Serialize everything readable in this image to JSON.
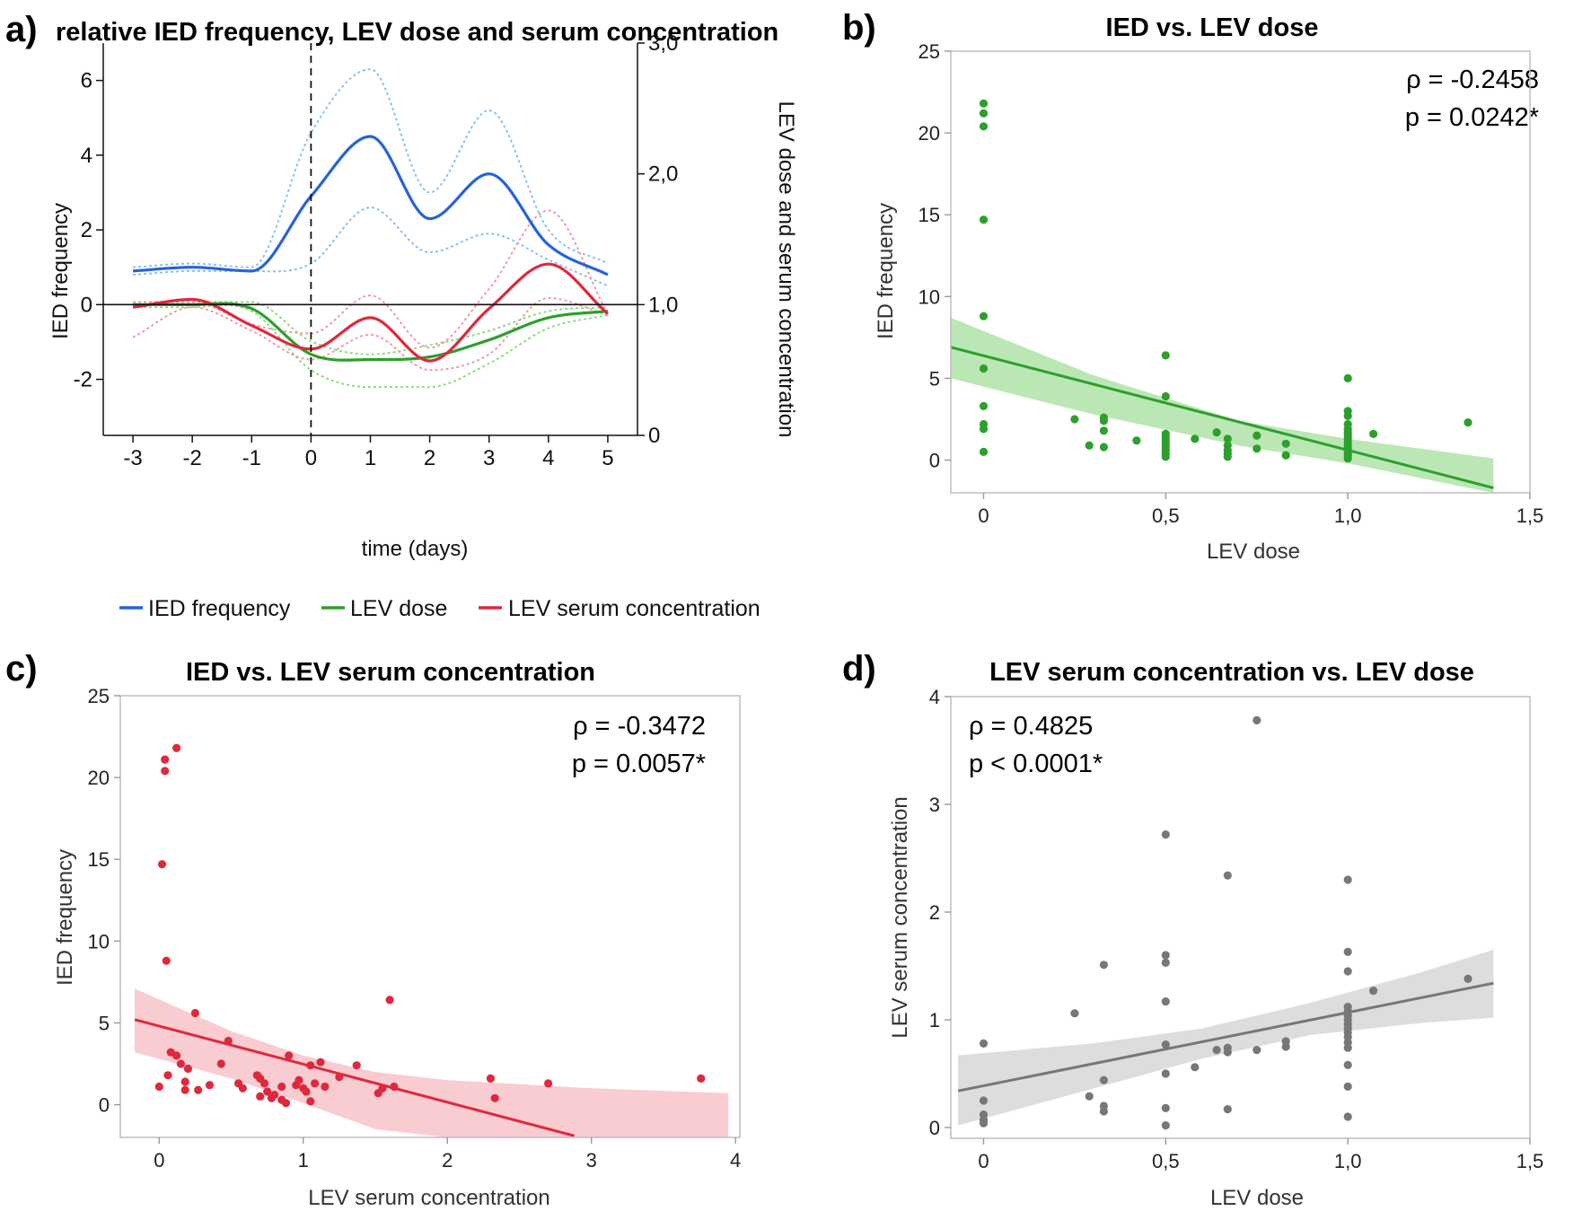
{
  "colors": {
    "blue": "#2563d9",
    "green": "#2ca02c",
    "red": "#e0283c",
    "gray": "#777777",
    "lightblue": "#8cc0ef",
    "lightgreen": "#8edb7e",
    "lightred": "#f29aa4",
    "greenband": "#b4e4ad",
    "redband": "#f8c6cd",
    "grayband": "#d9d9d9"
  },
  "chart_data": [
    {
      "panel": "a)",
      "type": "line",
      "title": "relative IED frequency, LEV dose and serum concentration",
      "xlabel": "time (days)",
      "ylabel": "IED frequency",
      "y2label": "LEV dose and serum concentration",
      "xlim": [
        -3.5,
        5.5
      ],
      "ylim": [
        -3.5,
        7
      ],
      "y2lim": [
        0,
        3
      ],
      "xticks": [
        -3,
        -2,
        -1,
        0,
        1,
        2,
        3,
        4,
        5
      ],
      "xtick_labels": [
        "-3",
        "-2",
        "-1",
        "0",
        "1",
        "2",
        "3",
        "4",
        "5"
      ],
      "yticks": [
        -2,
        0,
        2,
        4,
        6
      ],
      "ytick_labels": [
        "-2",
        "0",
        "2",
        "4",
        "6"
      ],
      "y2ticks": [
        0,
        1,
        2,
        3
      ],
      "y2tick_labels": [
        "0",
        "1,0",
        "2,0",
        "3,0"
      ],
      "vline_x": 0,
      "hline_y": 0,
      "legend": [
        "IED frequency",
        "LEV dose",
        "LEV serum concentration"
      ],
      "series": [
        {
          "name": "IED frequency",
          "axis": "left",
          "color": "#2563d9",
          "x": [
            -3,
            -2,
            -1,
            0,
            1,
            2,
            3,
            4,
            5
          ],
          "values": [
            0.9,
            1.0,
            0.9,
            2.9,
            4.5,
            2.3,
            3.5,
            1.6,
            0.8
          ],
          "lower": [
            0.8,
            0.9,
            0.9,
            1.1,
            2.6,
            1.4,
            1.9,
            1.2,
            0.5
          ],
          "upper": [
            1.0,
            1.1,
            1.0,
            4.6,
            6.3,
            3.0,
            5.2,
            2.0,
            1.1
          ]
        },
        {
          "name": "LEV dose",
          "axis": "right",
          "color": "#2ca02c",
          "x": [
            -3,
            -2,
            -1,
            0,
            1,
            2,
            3,
            4,
            5
          ],
          "values": [
            1.0,
            1.0,
            0.97,
            0.62,
            0.58,
            0.6,
            0.73,
            0.9,
            0.95
          ],
          "lower": [
            0.98,
            0.98,
            0.95,
            0.5,
            0.37,
            0.37,
            0.55,
            0.82,
            0.92
          ],
          "upper": [
            1.02,
            1.02,
            1.02,
            0.72,
            0.62,
            0.69,
            0.8,
            0.95,
            0.98
          ]
        },
        {
          "name": "LEV serum concentration",
          "axis": "right",
          "color": "#e0283c",
          "x": [
            -3,
            -2,
            -1,
            0,
            1,
            2,
            3,
            4,
            5
          ],
          "values": [
            0.98,
            1.04,
            0.84,
            0.66,
            0.9,
            0.57,
            0.97,
            1.31,
            0.93
          ],
          "lower": [
            0.75,
            0.98,
            0.8,
            0.58,
            0.77,
            0.5,
            0.62,
            1.05,
            0.92
          ],
          "upper": [
            1.02,
            1.02,
            0.85,
            0.78,
            1.07,
            0.67,
            1.12,
            1.72,
            0.93
          ]
        }
      ]
    },
    {
      "panel": "b)",
      "type": "scatter",
      "title": "IED vs. LEV dose",
      "xlabel": "LEV dose",
      "ylabel": "IED frequency",
      "xlim": [
        -0.09,
        1.5
      ],
      "ylim": [
        -2,
        25
      ],
      "xticks": [
        0,
        0.5,
        1.0,
        1.5
      ],
      "xtick_labels": [
        "0",
        "0,5",
        "1,0",
        "1,5"
      ],
      "yticks": [
        0,
        5,
        10,
        15,
        20,
        25
      ],
      "ytick_labels": [
        "0",
        "5",
        "10",
        "15",
        "20",
        "25"
      ],
      "stats": [
        "ρ = -0.2458",
        "p = 0.0242*"
      ],
      "fit": {
        "x": [
          -0.09,
          1.4
        ],
        "y": [
          6.9,
          -1.7
        ]
      },
      "band": {
        "x": [
          -0.09,
          0.3,
          0.7,
          1.0,
          1.4
        ],
        "lower": [
          5.0,
          2.8,
          0.9,
          -0.2,
          -2.0
        ],
        "upper": [
          8.7,
          5.2,
          2.4,
          1.3,
          0.1
        ]
      },
      "color": "#2ca02c",
      "points": [
        [
          0,
          21.8
        ],
        [
          0,
          21.2
        ],
        [
          0,
          20.4
        ],
        [
          0,
          14.7
        ],
        [
          0,
          8.8
        ],
        [
          0,
          5.6
        ],
        [
          0,
          3.3
        ],
        [
          0,
          2.2
        ],
        [
          0,
          1.9
        ],
        [
          0,
          0.5
        ],
        [
          0.25,
          2.5
        ],
        [
          0.29,
          0.9
        ],
        [
          0.33,
          2.6
        ],
        [
          0.33,
          2.4
        ],
        [
          0.33,
          1.8
        ],
        [
          0.33,
          0.8
        ],
        [
          0.42,
          1.2
        ],
        [
          0.5,
          6.4
        ],
        [
          0.5,
          3.9
        ],
        [
          0.5,
          1.6
        ],
        [
          0.5,
          1.4
        ],
        [
          0.5,
          1.2
        ],
        [
          0.5,
          1.0
        ],
        [
          0.5,
          0.8
        ],
        [
          0.5,
          0.6
        ],
        [
          0.5,
          0.4
        ],
        [
          0.5,
          0.2
        ],
        [
          0.58,
          1.3
        ],
        [
          0.64,
          1.7
        ],
        [
          0.67,
          1.3
        ],
        [
          0.67,
          0.9
        ],
        [
          0.67,
          0.6
        ],
        [
          0.67,
          0.4
        ],
        [
          0.67,
          0.2
        ],
        [
          0.75,
          1.5
        ],
        [
          0.75,
          0.7
        ],
        [
          0.83,
          1.0
        ],
        [
          0.83,
          0.3
        ],
        [
          1.0,
          5.0
        ],
        [
          1.0,
          3.0
        ],
        [
          1.0,
          2.7
        ],
        [
          1.0,
          2.2
        ],
        [
          1.0,
          1.9
        ],
        [
          1.0,
          1.7
        ],
        [
          1.0,
          1.5
        ],
        [
          1.0,
          1.3
        ],
        [
          1.0,
          1.1
        ],
        [
          1.0,
          0.9
        ],
        [
          1.0,
          0.7
        ],
        [
          1.0,
          0.5
        ],
        [
          1.0,
          0.3
        ],
        [
          1.0,
          0.1
        ],
        [
          1.07,
          1.6
        ],
        [
          1.33,
          2.3
        ]
      ]
    },
    {
      "panel": "c)",
      "type": "scatter",
      "title": "IED vs. LEV serum concentration",
      "xlabel": "LEV serum concentration",
      "ylabel": "IED frequency",
      "xlim": [
        -0.27,
        4.03
      ],
      "ylim": [
        -2,
        25
      ],
      "xticks": [
        0,
        1,
        2,
        3,
        4
      ],
      "xtick_labels": [
        "0",
        "1",
        "2",
        "3",
        "4"
      ],
      "yticks": [
        0,
        5,
        10,
        15,
        20,
        25
      ],
      "ytick_labels": [
        "0",
        "5",
        "10",
        "15",
        "20",
        "25"
      ],
      "stats": [
        "ρ = -0.3472",
        "p = 0.0057*"
      ],
      "fit": {
        "x": [
          -0.17,
          2.88
        ],
        "y": [
          5.2,
          -1.9
        ]
      },
      "band": {
        "x": [
          -0.17,
          0.5,
          1.0,
          1.5,
          2.0,
          3.0,
          3.95
        ],
        "lower": [
          3.2,
          1.6,
          0.1,
          -1.5,
          -2.0,
          -2.0,
          -2.0
        ],
        "upper": [
          7.1,
          4.5,
          3.0,
          2.0,
          1.5,
          1.0,
          0.7
        ]
      },
      "color": "#e0283c",
      "points": [
        [
          0.04,
          21.1
        ],
        [
          0.04,
          20.4
        ],
        [
          0.12,
          21.8
        ],
        [
          0.02,
          14.7
        ],
        [
          0.05,
          8.8
        ],
        [
          0.25,
          5.6
        ],
        [
          0.48,
          3.9
        ],
        [
          0.08,
          3.2
        ],
        [
          0.12,
          3.0
        ],
        [
          0.0,
          1.1
        ],
        [
          0.06,
          1.8
        ],
        [
          0.15,
          2.5
        ],
        [
          0.2,
          2.2
        ],
        [
          0.18,
          1.4
        ],
        [
          0.18,
          0.9
        ],
        [
          0.27,
          0.9
        ],
        [
          0.35,
          1.2
        ],
        [
          0.43,
          2.5
        ],
        [
          0.55,
          1.3
        ],
        [
          0.58,
          1.0
        ],
        [
          0.68,
          1.8
        ],
        [
          0.7,
          1.6
        ],
        [
          0.7,
          0.5
        ],
        [
          0.73,
          1.3
        ],
        [
          0.75,
          0.8
        ],
        [
          0.78,
          0.4
        ],
        [
          0.8,
          0.6
        ],
        [
          0.85,
          1.1
        ],
        [
          0.85,
          0.3
        ],
        [
          0.88,
          0.1
        ],
        [
          0.9,
          3.0
        ],
        [
          0.95,
          1.2
        ],
        [
          0.97,
          1.5
        ],
        [
          1.0,
          1.0
        ],
        [
          1.02,
          0.8
        ],
        [
          1.05,
          2.4
        ],
        [
          1.05,
          0.2
        ],
        [
          1.08,
          1.3
        ],
        [
          1.12,
          2.6
        ],
        [
          1.15,
          1.1
        ],
        [
          1.25,
          1.7
        ],
        [
          1.37,
          2.4
        ],
        [
          1.52,
          0.7
        ],
        [
          1.55,
          1.0
        ],
        [
          1.6,
          6.4
        ],
        [
          1.63,
          1.1
        ],
        [
          2.3,
          1.6
        ],
        [
          2.33,
          0.4
        ],
        [
          2.7,
          1.3
        ],
        [
          3.76,
          1.6
        ]
      ]
    },
    {
      "panel": "d)",
      "type": "scatter",
      "title": "LEV serum concentration vs. LEV dose",
      "xlabel": "LEV dose",
      "ylabel": "LEV serum concentration",
      "xlim": [
        -0.09,
        1.5
      ],
      "ylim": [
        -0.1,
        4
      ],
      "xticks": [
        0,
        0.5,
        1.0,
        1.5
      ],
      "xtick_labels": [
        "0",
        "0,5",
        "1,0",
        "1,5"
      ],
      "yticks": [
        0,
        1,
        2,
        3,
        4
      ],
      "ytick_labels": [
        "0",
        "1",
        "2",
        "3",
        "4"
      ],
      "stats": [
        "ρ = 0.4825",
        "p < 0.0001*"
      ],
      "fit": {
        "x": [
          -0.07,
          1.4
        ],
        "y": [
          0.34,
          1.34
        ]
      },
      "band": {
        "x": [
          -0.07,
          0.3,
          0.6,
          0.9,
          1.2,
          1.4
        ],
        "lower": [
          0.02,
          0.36,
          0.64,
          0.86,
          0.97,
          1.02
        ],
        "upper": [
          0.67,
          0.78,
          0.92,
          1.16,
          1.44,
          1.65
        ]
      },
      "color": "#777777",
      "points": [
        [
          0,
          0.78
        ],
        [
          0,
          0.25
        ],
        [
          0,
          0.12
        ],
        [
          0,
          0.07
        ],
        [
          0,
          0.04
        ],
        [
          0.25,
          1.06
        ],
        [
          0.29,
          0.29
        ],
        [
          0.33,
          1.51
        ],
        [
          0.33,
          0.44
        ],
        [
          0.33,
          0.2
        ],
        [
          0.33,
          0.15
        ],
        [
          0.5,
          2.72
        ],
        [
          0.5,
          1.6
        ],
        [
          0.5,
          1.53
        ],
        [
          0.5,
          1.17
        ],
        [
          0.5,
          0.77
        ],
        [
          0.5,
          0.5
        ],
        [
          0.5,
          0.18
        ],
        [
          0.5,
          0.02
        ],
        [
          0.58,
          0.56
        ],
        [
          0.64,
          0.72
        ],
        [
          0.67,
          2.34
        ],
        [
          0.67,
          0.74
        ],
        [
          0.67,
          0.7
        ],
        [
          0.67,
          0.17
        ],
        [
          0.75,
          3.78
        ],
        [
          0.75,
          0.72
        ],
        [
          0.83,
          0.8
        ],
        [
          0.83,
          0.75
        ],
        [
          1.0,
          2.3
        ],
        [
          1.0,
          1.63
        ],
        [
          1.0,
          1.45
        ],
        [
          1.0,
          1.12
        ],
        [
          1.0,
          1.08
        ],
        [
          1.0,
          1.04
        ],
        [
          1.0,
          1.0
        ],
        [
          1.0,
          0.96
        ],
        [
          1.0,
          0.92
        ],
        [
          1.0,
          0.88
        ],
        [
          1.0,
          0.84
        ],
        [
          1.0,
          0.79
        ],
        [
          1.0,
          0.74
        ],
        [
          1.0,
          0.58
        ],
        [
          1.0,
          0.38
        ],
        [
          1.0,
          0.1
        ],
        [
          1.07,
          1.27
        ],
        [
          1.33,
          1.38
        ]
      ]
    }
  ]
}
